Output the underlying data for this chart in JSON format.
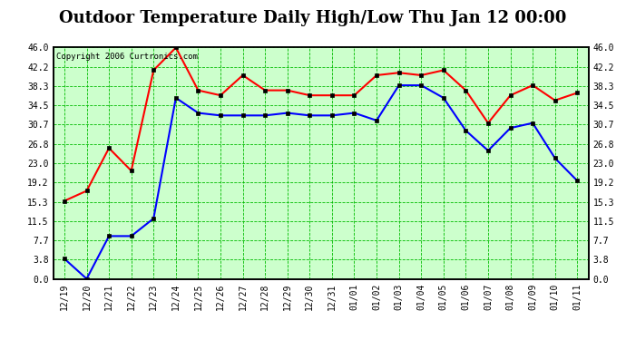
{
  "title": "Outdoor Temperature Daily High/Low Thu Jan 12 00:00",
  "copyright": "Copyright 2006 Curtronics.com",
  "labels": [
    "12/19",
    "12/20",
    "12/21",
    "12/22",
    "12/23",
    "12/24",
    "12/25",
    "12/26",
    "12/27",
    "12/28",
    "12/29",
    "12/30",
    "12/31",
    "01/01",
    "01/02",
    "01/03",
    "01/04",
    "01/05",
    "01/06",
    "01/07",
    "01/08",
    "01/09",
    "01/10",
    "01/11"
  ],
  "high_temps": [
    15.5,
    17.5,
    26.0,
    21.5,
    41.5,
    46.0,
    37.5,
    36.5,
    40.5,
    37.5,
    37.5,
    36.5,
    36.5,
    36.5,
    40.5,
    41.0,
    40.5,
    41.5,
    37.5,
    31.0,
    36.5,
    38.5,
    35.5,
    37.0
  ],
  "low_temps": [
    4.0,
    0.0,
    8.5,
    8.5,
    12.0,
    36.0,
    33.0,
    32.5,
    32.5,
    32.5,
    33.0,
    32.5,
    32.5,
    33.0,
    31.5,
    38.5,
    38.5,
    36.0,
    29.5,
    25.5,
    30.0,
    31.0,
    24.0,
    19.5
  ],
  "high_color": "#ff0000",
  "low_color": "#0000ff",
  "bg_color": "#ccffcc",
  "outer_bg": "#ffffff",
  "grid_color": "#00bb00",
  "ylim": [
    0.0,
    46.0
  ],
  "yticks": [
    0.0,
    3.8,
    7.7,
    11.5,
    15.3,
    19.2,
    23.0,
    26.8,
    30.7,
    34.5,
    38.3,
    42.2,
    46.0
  ],
  "title_fontsize": 13,
  "marker": "s",
  "marker_size": 3,
  "linewidth": 1.5
}
